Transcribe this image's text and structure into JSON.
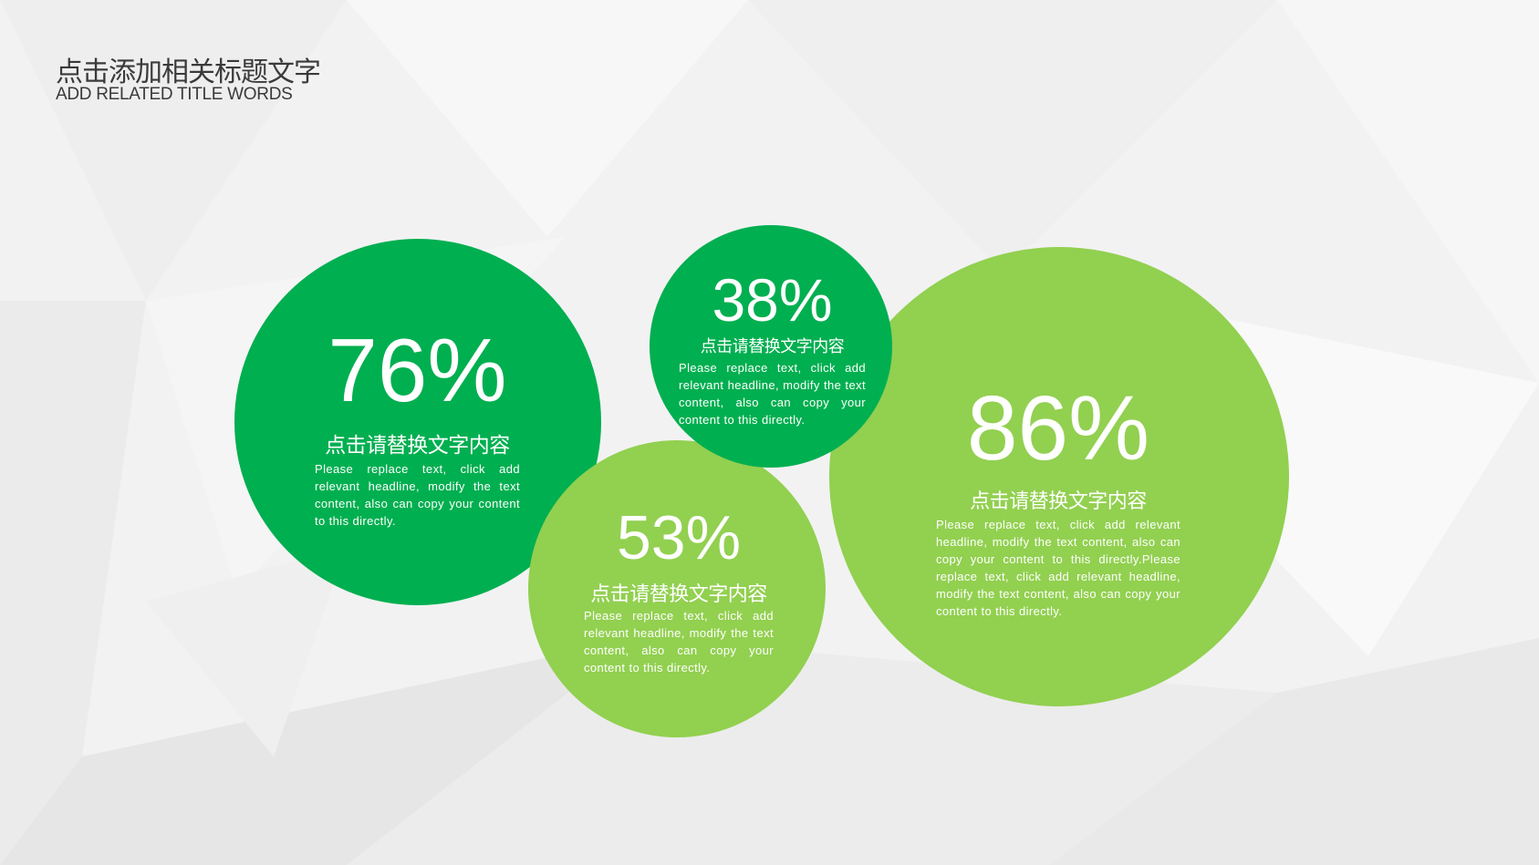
{
  "header": {
    "title": "点击添加相关标题文字",
    "subtitle": "ADD RELATED TITLE WORDS"
  },
  "colors": {
    "dark_green": "#00AF50",
    "light_green": "#92D050"
  },
  "circles": [
    {
      "percent": "76%",
      "heading": "点击请替换文字内容",
      "body": "Please replace text, click add relevant headline, modify the text content, also can copy your content to this directly.",
      "color": "dark_green"
    },
    {
      "percent": "53%",
      "heading": "点击请替换文字内容",
      "body": "Please replace text, click add relevant headline, modify the text content, also can copy your content to this directly.",
      "color": "light_green"
    },
    {
      "percent": "86%",
      "heading": "点击请替换文字内容",
      "body": "Please replace text, click add relevant headline, modify the text content, also can copy your content to this directly.Please replace text, click add relevant headline, modify the text content, also can copy your content to this directly.",
      "color": "light_green"
    },
    {
      "percent": "38%",
      "heading": "点击请替换文字内容",
      "body": "Please replace text, click add relevant headline, modify the text content, also can copy your content to this directly.",
      "color": "dark_green"
    }
  ]
}
